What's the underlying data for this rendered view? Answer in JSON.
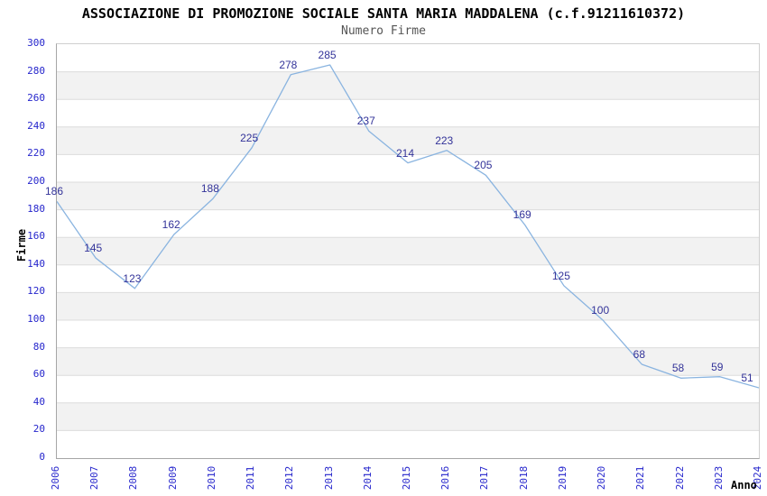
{
  "header": {
    "title": "ASSOCIAZIONE DI PROMOZIONE SOCIALE SANTA MARIA MADDALENA (c.f.91211610372)",
    "subtitle": "Numero Firme"
  },
  "chart_data": {
    "type": "line",
    "title": "ASSOCIAZIONE DI PROMOZIONE SOCIALE SANTA MARIA MADDALENA (c.f.91211610372)",
    "subtitle": "Numero Firme",
    "xlabel": "Anno",
    "ylabel": "Firme",
    "categories": [
      "2006",
      "2007",
      "2008",
      "2009",
      "2010",
      "2011",
      "2012",
      "2013",
      "2014",
      "2015",
      "2016",
      "2017",
      "2018",
      "2019",
      "2020",
      "2021",
      "2022",
      "2023",
      "2024"
    ],
    "values": [
      186,
      145,
      123,
      162,
      188,
      225,
      278,
      285,
      237,
      214,
      223,
      205,
      169,
      125,
      100,
      68,
      58,
      59,
      51
    ],
    "ylim": [
      0,
      300
    ],
    "ytick_step": 20,
    "grid": true,
    "legend_position": "none",
    "value_labels": true,
    "colors": {
      "line": "#8ab4e0",
      "tick_label": "#2626cc",
      "value_label": "#333399",
      "band": "#f2f2f2",
      "gridline": "#dcdcdc",
      "title": "#000000",
      "subtitle": "#555555"
    }
  }
}
